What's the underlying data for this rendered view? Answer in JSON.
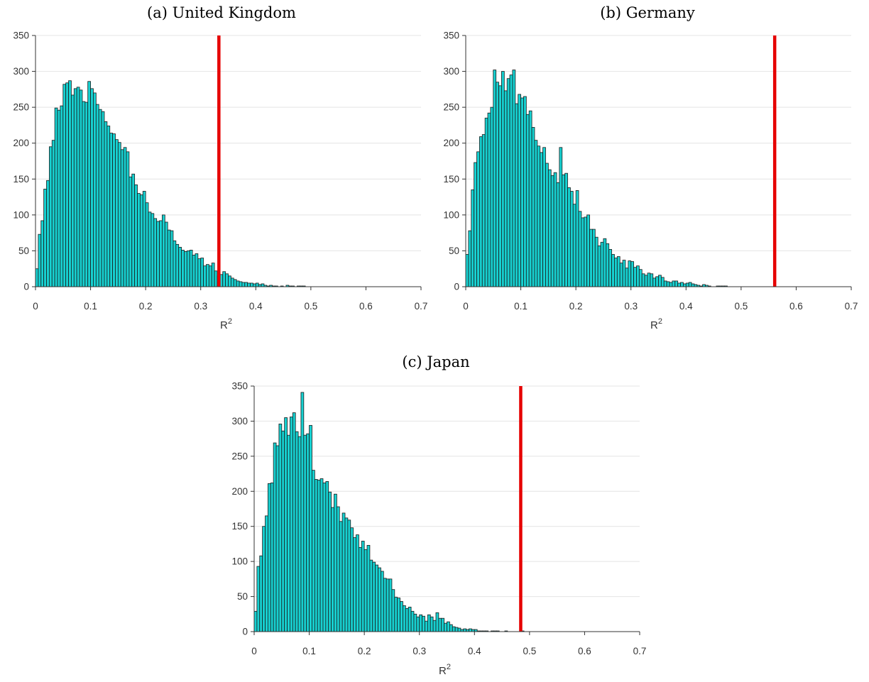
{
  "colors": {
    "bar_fill": "#17d1d1",
    "bar_edge": "#1a1a1a",
    "threshold_line": "#e60000",
    "grid": "#e4e4e4"
  },
  "chart_data": [
    {
      "type": "bar",
      "title": "(a) United Kingdom",
      "xlabel": "R",
      "xlabel_superscript": "2",
      "xlim": [
        0,
        0.7
      ],
      "ylim": [
        0,
        350
      ],
      "xticks": [
        "0",
        "0.1",
        "0.2",
        "0.3",
        "0.4",
        "0.5",
        "0.6",
        "0.7"
      ],
      "yticks": [
        "0",
        "50",
        "100",
        "150",
        "200",
        "250",
        "300",
        "350"
      ],
      "grid": "horizontal",
      "bin_width": 0.005,
      "bin_start": 0,
      "values": [
        25,
        73,
        92,
        136,
        148,
        195,
        204,
        249,
        246,
        252,
        282,
        284,
        287,
        267,
        276,
        278,
        274,
        258,
        257,
        286,
        276,
        270,
        254,
        247,
        244,
        230,
        224,
        214,
        213,
        205,
        201,
        191,
        194,
        188,
        153,
        157,
        142,
        130,
        128,
        133,
        117,
        104,
        102,
        95,
        91,
        92,
        100,
        90,
        79,
        78,
        64,
        59,
        55,
        51,
        49,
        50,
        51,
        44,
        46,
        39,
        40,
        29,
        31,
        29,
        33,
        22,
        15,
        17,
        21,
        18,
        15,
        12,
        10,
        8,
        7,
        6,
        6,
        5,
        5,
        4,
        5,
        3,
        4,
        2,
        1,
        2,
        1,
        1,
        0,
        1,
        0,
        2,
        1,
        1,
        0,
        1,
        1,
        1,
        0,
        0,
        0
      ],
      "threshold": 0.333
    },
    {
      "type": "bar",
      "title": "(b) Germany",
      "xlabel": "R",
      "xlabel_superscript": "2",
      "xlim": [
        0,
        0.7
      ],
      "ylim": [
        0,
        350
      ],
      "xticks": [
        "0",
        "0.1",
        "0.2",
        "0.3",
        "0.4",
        "0.5",
        "0.6",
        "0.7"
      ],
      "yticks": [
        "0",
        "50",
        "100",
        "150",
        "200",
        "250",
        "300",
        "350"
      ],
      "grid": "horizontal",
      "bin_width": 0.005,
      "bin_start": 0,
      "values": [
        45,
        78,
        135,
        173,
        188,
        209,
        212,
        235,
        242,
        250,
        302,
        285,
        280,
        300,
        273,
        290,
        295,
        302,
        255,
        268,
        263,
        265,
        240,
        245,
        222,
        204,
        196,
        187,
        194,
        172,
        163,
        155,
        159,
        145,
        194,
        156,
        158,
        138,
        133,
        115,
        134,
        105,
        96,
        97,
        100,
        80,
        80,
        69,
        57,
        62,
        67,
        60,
        52,
        45,
        40,
        42,
        33,
        37,
        26,
        36,
        35,
        27,
        29,
        24,
        18,
        16,
        19,
        18,
        12,
        14,
        16,
        13,
        8,
        7,
        6,
        8,
        8,
        5,
        6,
        4,
        5,
        6,
        4,
        3,
        2,
        1,
        3,
        2,
        1,
        0,
        0,
        1,
        1,
        1,
        1,
        0,
        0,
        0,
        0,
        0,
        0
      ],
      "threshold": 0.561
    },
    {
      "type": "bar",
      "title": "(c) Japan",
      "xlabel": "R",
      "xlabel_superscript": "2",
      "xlim": [
        0,
        0.7
      ],
      "ylim": [
        0,
        350
      ],
      "xticks": [
        "0",
        "0.1",
        "0.2",
        "0.3",
        "0.4",
        "0.5",
        "0.6",
        "0.7"
      ],
      "yticks": [
        "0",
        "50",
        "100",
        "150",
        "200",
        "250",
        "300",
        "350"
      ],
      "grid": "horizontal",
      "bin_width": 0.005,
      "bin_start": 0,
      "values": [
        29,
        93,
        108,
        150,
        165,
        211,
        212,
        269,
        265,
        296,
        286,
        305,
        280,
        306,
        312,
        285,
        278,
        341,
        280,
        282,
        294,
        230,
        217,
        216,
        218,
        212,
        214,
        199,
        177,
        196,
        178,
        157,
        169,
        162,
        159,
        148,
        134,
        138,
        120,
        129,
        117,
        123,
        102,
        99,
        95,
        91,
        86,
        76,
        75,
        75,
        60,
        49,
        48,
        43,
        37,
        33,
        35,
        29,
        25,
        21,
        24,
        22,
        15,
        24,
        21,
        16,
        27,
        19,
        19,
        12,
        14,
        10,
        7,
        6,
        5,
        3,
        4,
        3,
        4,
        3,
        3,
        1,
        1,
        1,
        1,
        0,
        1,
        1,
        1,
        0,
        0,
        1,
        0,
        0,
        0,
        0,
        0,
        1,
        0,
        0,
        0
      ],
      "threshold": 0.484
    }
  ]
}
